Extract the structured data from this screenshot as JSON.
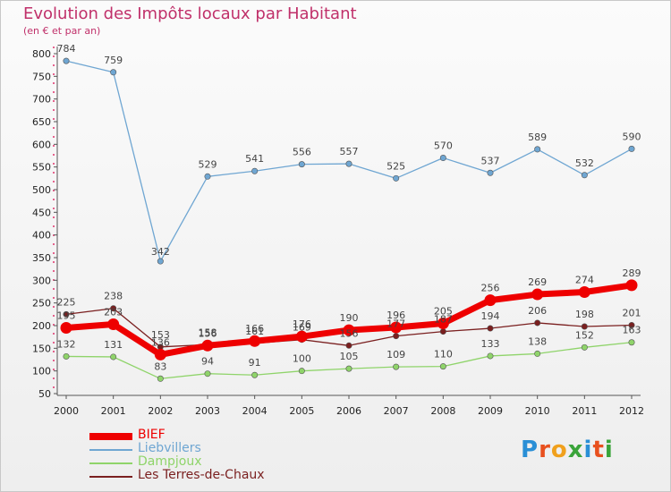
{
  "header": {
    "title": "Evolution des Impôts locaux par Habitant",
    "subtitle": "(en € et par an)"
  },
  "logo": {
    "text": "Proxiti",
    "colors": [
      "#2a8fd6",
      "#e8501e",
      "#f0a01c",
      "#3aa43a",
      "#2a8fd6",
      "#e8501e",
      "#3aa43a"
    ]
  },
  "chart_data": {
    "type": "line",
    "title": "Evolution des Impôts locaux par Habitant",
    "subtitle": "(en € et par an)",
    "xlabel": "",
    "ylabel": "",
    "x": [
      "2000",
      "2001",
      "2002",
      "2003",
      "2004",
      "2005",
      "2006",
      "2007",
      "2008",
      "2009",
      "2010",
      "2011",
      "2012"
    ],
    "ylim": [
      50,
      800
    ],
    "yticks": [
      50,
      100,
      150,
      200,
      250,
      300,
      350,
      400,
      450,
      500,
      550,
      600,
      650,
      700,
      750,
      800
    ],
    "grid": false,
    "legend_position": "bottom-left",
    "series": [
      {
        "name": "BIEF",
        "color": "#ee0000",
        "values": [
          195,
          203,
          136,
          156,
          166,
          176,
          190,
          196,
          205,
          256,
          269,
          274,
          289
        ]
      },
      {
        "name": "Liebvillers",
        "color": "#6fa6d2",
        "values": [
          784,
          759,
          342,
          529,
          541,
          556,
          557,
          525,
          570,
          537,
          589,
          532,
          590
        ]
      },
      {
        "name": "Dampjoux",
        "color": "#8fd46a",
        "values": [
          132,
          131,
          83,
          94,
          91,
          100,
          105,
          109,
          110,
          133,
          138,
          152,
          163
        ]
      },
      {
        "name": "Les Terres-de-Chaux",
        "color": "#7a1f1f",
        "values": [
          225,
          238,
          153,
          158,
          161,
          169,
          156,
          177,
          187,
          194,
          206,
          198,
          201
        ]
      }
    ]
  }
}
